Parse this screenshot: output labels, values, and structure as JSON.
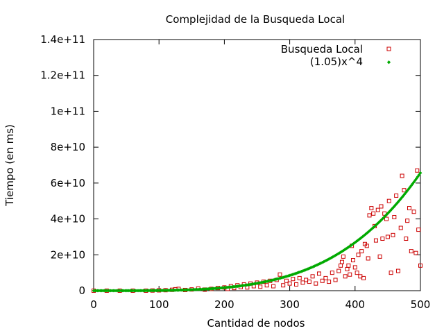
{
  "chart_data": {
    "type": "scatter",
    "title": "Complejidad de la Busqueda Local",
    "xlabel": "Cantidad de nodos",
    "ylabel": "Tiempo (en ms)",
    "xlim": [
      0,
      500
    ],
    "ylim": [
      0,
      140000000000
    ],
    "xticks": [
      0,
      100,
      200,
      300,
      400,
      500
    ],
    "xtick_labels": [
      "0",
      "100",
      "200",
      "300",
      "400",
      "500"
    ],
    "yticks": [
      0,
      20000000000,
      40000000000,
      60000000000,
      80000000000,
      100000000000,
      120000000000,
      140000000000
    ],
    "ytick_labels": [
      "0",
      "2e+10",
      "4e+10",
      "6e+10",
      "8e+10",
      "1e+11",
      "1.2e+11",
      "1.4e+11"
    ],
    "grid": false,
    "legend_position": "top-right",
    "series": [
      {
        "name": "Busqueda Local",
        "marker": "open-square",
        "color": "#cc0000",
        "points": [
          [
            0,
            0
          ],
          [
            20,
            0
          ],
          [
            40,
            0
          ],
          [
            60,
            0
          ],
          [
            80,
            0
          ],
          [
            90,
            100000000
          ],
          [
            100,
            200000000
          ],
          [
            110,
            300000000
          ],
          [
            120,
            500000000
          ],
          [
            125,
            800000000
          ],
          [
            130,
            1000000000
          ],
          [
            140,
            400000000
          ],
          [
            150,
            700000000
          ],
          [
            160,
            1200000000
          ],
          [
            170,
            600000000
          ],
          [
            180,
            1000000000
          ],
          [
            190,
            1500000000
          ],
          [
            200,
            1800000000
          ],
          [
            205,
            1000000000
          ],
          [
            210,
            2500000000
          ],
          [
            215,
            1500000000
          ],
          [
            220,
            3000000000
          ],
          [
            225,
            2000000000
          ],
          [
            230,
            3500000000
          ],
          [
            235,
            1800000000
          ],
          [
            240,
            4000000000
          ],
          [
            245,
            2500000000
          ],
          [
            250,
            4500000000
          ],
          [
            255,
            2200000000
          ],
          [
            260,
            5000000000
          ],
          [
            265,
            3000000000
          ],
          [
            270,
            5500000000
          ],
          [
            275,
            2500000000
          ],
          [
            280,
            6000000000
          ],
          [
            285,
            9000000000
          ],
          [
            290,
            3000000000
          ],
          [
            295,
            5500000000
          ],
          [
            300,
            4000000000
          ],
          [
            305,
            6500000000
          ],
          [
            310,
            3500000000
          ],
          [
            315,
            7000000000
          ],
          [
            320,
            4500000000
          ],
          [
            325,
            6000000000
          ],
          [
            330,
            5000000000
          ],
          [
            335,
            8000000000
          ],
          [
            340,
            4000000000
          ],
          [
            345,
            9500000000
          ],
          [
            350,
            5500000000
          ],
          [
            355,
            7000000000
          ],
          [
            360,
            5000000000
          ],
          [
            365,
            10000000000
          ],
          [
            370,
            6000000000
          ],
          [
            375,
            11000000000
          ],
          [
            378,
            14000000000
          ],
          [
            380,
            16000000000
          ],
          [
            382,
            19000000000
          ],
          [
            385,
            8000000000
          ],
          [
            388,
            12000000000
          ],
          [
            390,
            14000000000
          ],
          [
            392,
            9000000000
          ],
          [
            395,
            25000000000
          ],
          [
            397,
            17000000000
          ],
          [
            400,
            13000000000
          ],
          [
            403,
            10000000000
          ],
          [
            405,
            20000000000
          ],
          [
            408,
            8000000000
          ],
          [
            410,
            22000000000
          ],
          [
            413,
            7000000000
          ],
          [
            415,
            26000000000
          ],
          [
            418,
            25000000000
          ],
          [
            420,
            18000000000
          ],
          [
            422,
            42000000000
          ],
          [
            425,
            46000000000
          ],
          [
            428,
            43000000000
          ],
          [
            430,
            36000000000
          ],
          [
            432,
            28000000000
          ],
          [
            435,
            45000000000
          ],
          [
            438,
            19000000000
          ],
          [
            440,
            47000000000
          ],
          [
            442,
            29000000000
          ],
          [
            445,
            43000000000
          ],
          [
            448,
            40000000000
          ],
          [
            450,
            30000000000
          ],
          [
            452,
            50000000000
          ],
          [
            455,
            10000000000
          ],
          [
            458,
            31000000000
          ],
          [
            460,
            41000000000
          ],
          [
            463,
            53000000000
          ],
          [
            466,
            11000000000
          ],
          [
            470,
            35000000000
          ],
          [
            472,
            64000000000
          ],
          [
            475,
            56000000000
          ],
          [
            478,
            29000000000
          ],
          [
            480,
            39000000000
          ],
          [
            483,
            46000000000
          ],
          [
            486,
            22000000000
          ],
          [
            490,
            44000000000
          ],
          [
            493,
            21000000000
          ],
          [
            495,
            67000000000
          ],
          [
            497,
            34000000000
          ],
          [
            500,
            14000000000
          ]
        ]
      },
      {
        "name": "(1.05)x^4",
        "marker": "small-diamond",
        "color": "#00aa00",
        "function": "1.05*x^4",
        "x_start": 0,
        "x_end": 500,
        "x_step": 2
      }
    ]
  }
}
